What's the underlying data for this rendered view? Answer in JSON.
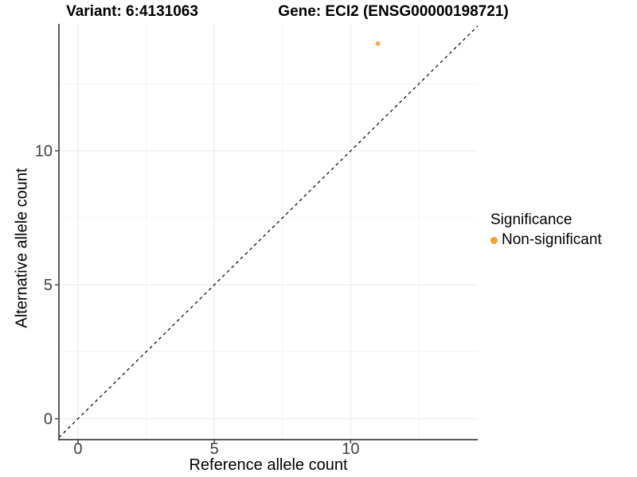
{
  "chart_data": {
    "type": "scatter",
    "titles": {
      "left": "Variant: 6:4131063",
      "right": "Gene: ECI2 (ENSG00000198721)"
    },
    "xlabel": "Reference allele count",
    "ylabel": "Alternative allele count",
    "xlim": [
      -0.7,
      14.66
    ],
    "ylim": [
      -0.78,
      14.74
    ],
    "x_ticks": [
      0,
      5,
      10
    ],
    "y_ticks": [
      0,
      5,
      10
    ],
    "x_minor_ticks": [
      2.5,
      7.5,
      12.5
    ],
    "y_minor_ticks": [
      2.5,
      7.5,
      12.5
    ],
    "grid": true,
    "points": [
      {
        "x": 11,
        "y": 14,
        "series": "Non-significant"
      }
    ],
    "identity_line": {
      "slope": 1,
      "intercept": 0,
      "style": "dashed",
      "color": "#000000"
    },
    "legend": {
      "title": "Significance",
      "position": "right",
      "entries": [
        {
          "label": "Non-significant",
          "color": "#FB9E2A"
        }
      ]
    },
    "colors": {
      "point": "#F9A242",
      "axis_line": "#404040",
      "tick_text": "#404040",
      "grid_major": "#E9E9E9",
      "grid_minor": "#F4F4F4",
      "background": "#FFFFFF"
    }
  }
}
